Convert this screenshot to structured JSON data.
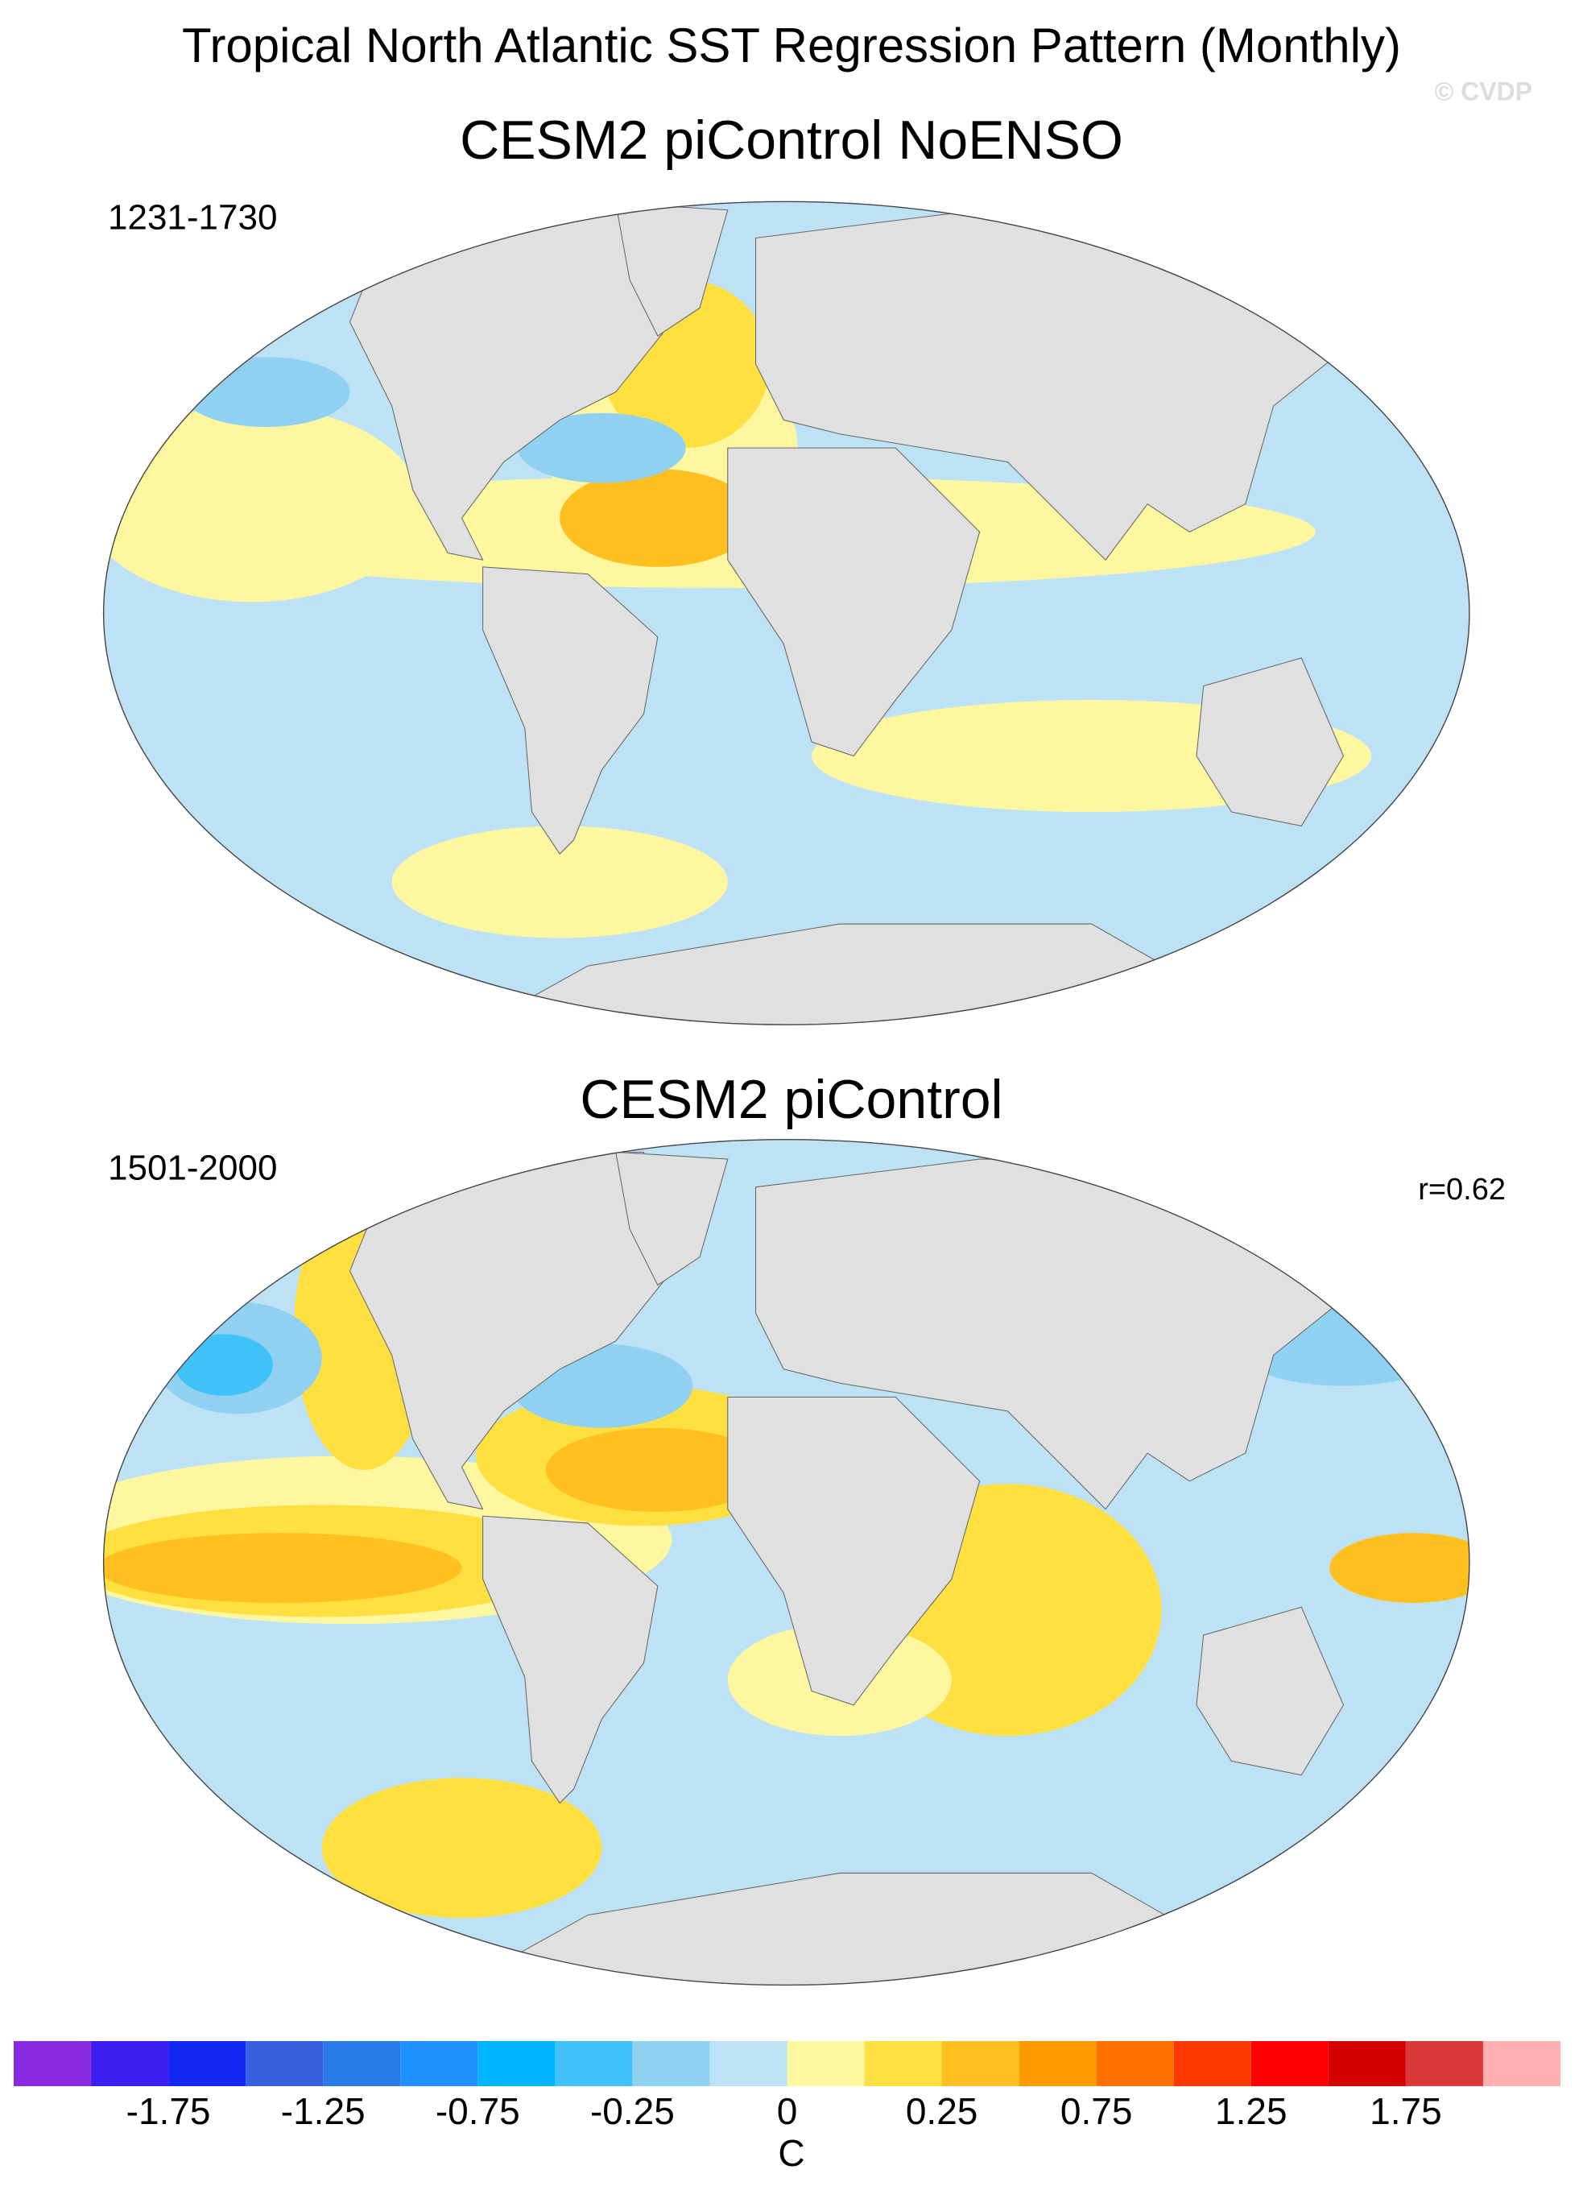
{
  "title": "Tropical North Atlantic SST Regression Pattern (Monthly)",
  "credit": "© CVDP",
  "panels": [
    {
      "title": "CESM2 piControl NoENSO",
      "period": "1231-1730"
    },
    {
      "title": "CESM2 piControl",
      "period": "1501-2000",
      "correlation": "r=0.62"
    }
  ],
  "colorbar": {
    "colors": [
      "#8a2be2",
      "#3c1ef0",
      "#1428f5",
      "#3a5ee0",
      "#2a7ae8",
      "#1e90ff",
      "#00b4ff",
      "#40c2f8",
      "#90d0f0",
      "#bee2f5",
      "#fff7a0",
      "#ffe040",
      "#ffc020",
      "#ff9a00",
      "#ff7000",
      "#ff3a00",
      "#ff0000",
      "#d40000",
      "#d83838",
      "#ffb0b0"
    ],
    "labels": [
      null,
      -1.75,
      null,
      -1.25,
      null,
      -0.75,
      null,
      -0.25,
      null,
      0,
      null,
      0.25,
      null,
      0.75,
      null,
      1.25,
      null,
      1.75,
      null
    ],
    "units": "C"
  }
}
